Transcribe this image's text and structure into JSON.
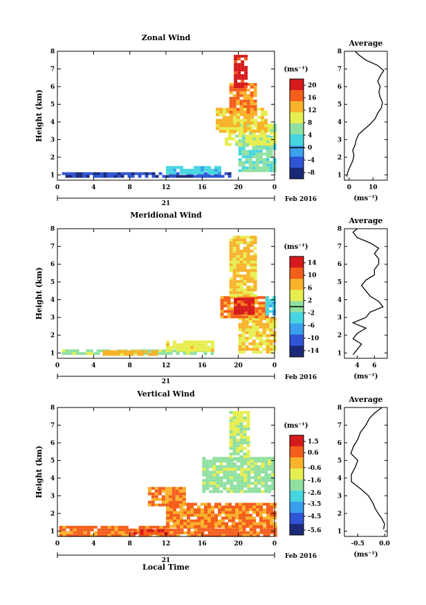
{
  "figure": {
    "day_label": "21",
    "month_year": "Feb 2016",
    "xlabel": "Local Time",
    "ylabel": "Height (km)",
    "profile_title": "Average"
  },
  "chart_data": [
    {
      "type": "heatmap",
      "title": "Zonal Wind",
      "xlabel": "",
      "ylabel": "Height (km)",
      "x_ticks": [
        "0",
        "4",
        "8",
        "12",
        "16",
        "20",
        "0"
      ],
      "y_ticks": [
        "1",
        "2",
        "3",
        "4",
        "5",
        "6",
        "7",
        "8"
      ],
      "xlim": [
        0,
        24
      ],
      "ylim": [
        0.7,
        8
      ],
      "colorbar": {
        "unit": "(ms⁻¹)",
        "ticks": [
          "-8",
          "-4",
          "0",
          "4",
          "8",
          "12",
          "16",
          "20"
        ],
        "range": [
          -10,
          22
        ],
        "marker": 0
      },
      "colors": [
        "#1b2a78",
        "#2f54d6",
        "#3aa0ee",
        "#46d6e0",
        "#8fe0a0",
        "#e6ee50",
        "#f9b22a",
        "#f45d1a",
        "#d6191c"
      ],
      "regions": [
        {
          "x": [
            0.5,
            19
          ],
          "y": [
            0.9,
            1.15
          ],
          "value": -6
        },
        {
          "x": [
            12,
            18
          ],
          "y": [
            1.1,
            1.5
          ],
          "value": 2
        },
        {
          "x": [
            20,
            24
          ],
          "y": [
            1.3,
            3.2
          ],
          "value": 5
        },
        {
          "x": [
            18.5,
            24
          ],
          "y": [
            2.8,
            3.9
          ],
          "value": 9
        },
        {
          "x": [
            17.5,
            23
          ],
          "y": [
            3.5,
            4.8
          ],
          "value": 12
        },
        {
          "x": [
            19,
            22
          ],
          "y": [
            4.5,
            6.2
          ],
          "value": 15
        },
        {
          "x": [
            19.5,
            21
          ],
          "y": [
            6,
            7.8
          ],
          "value": 20
        }
      ]
    },
    {
      "type": "line",
      "title": "Average",
      "xlabel": "(ms⁻¹)",
      "x_ticks": [
        "0",
        "10"
      ],
      "y_ticks": [
        "1",
        "2",
        "3",
        "4",
        "5",
        "6",
        "7",
        "8"
      ],
      "xlim": [
        -2,
        16
      ],
      "ylim": [
        0.7,
        8
      ],
      "points": [
        [
          -1,
          0.9
        ],
        [
          -0.5,
          1.2
        ],
        [
          0.5,
          1.5
        ],
        [
          1.5,
          1.8
        ],
        [
          2,
          2.1
        ],
        [
          1.5,
          2.4
        ],
        [
          2.5,
          2.7
        ],
        [
          3,
          3
        ],
        [
          4,
          3.3
        ],
        [
          6.5,
          3.6
        ],
        [
          9,
          3.9
        ],
        [
          11,
          4.2
        ],
        [
          12,
          4.5
        ],
        [
          13.5,
          4.8
        ],
        [
          14,
          5.1
        ],
        [
          13,
          5.4
        ],
        [
          12.5,
          5.7
        ],
        [
          13,
          6
        ],
        [
          12,
          6.3
        ],
        [
          13,
          6.6
        ],
        [
          14.5,
          6.9
        ],
        [
          12,
          7.2
        ],
        [
          7,
          7.5
        ],
        [
          4,
          7.8
        ],
        [
          2.5,
          8
        ]
      ]
    },
    {
      "type": "heatmap",
      "title": "Meridional Wind",
      "xlabel": "",
      "ylabel": "Height (km)",
      "x_ticks": [
        "0",
        "4",
        "8",
        "12",
        "16",
        "20",
        "0"
      ],
      "y_ticks": [
        "1",
        "2",
        "3",
        "4",
        "5",
        "6",
        "7",
        "8"
      ],
      "xlim": [
        0,
        24
      ],
      "ylim": [
        0.7,
        8
      ],
      "colorbar": {
        "unit": "(ms⁻¹)",
        "ticks": [
          "-14",
          "-10",
          "-6",
          "-2",
          "2",
          "6",
          "10",
          "14"
        ],
        "range": [
          -16,
          16
        ],
        "marker": 0
      },
      "colors": [
        "#1b2a78",
        "#2f54d6",
        "#3aa0ee",
        "#46d6e0",
        "#8fe0a0",
        "#e6ee50",
        "#f9b22a",
        "#f45d1a",
        "#d6191c"
      ],
      "regions": [
        {
          "x": [
            0.5,
            17
          ],
          "y": [
            0.9,
            1.2
          ],
          "value": 1
        },
        {
          "x": [
            5,
            11
          ],
          "y": [
            0.9,
            1.15
          ],
          "value": 7
        },
        {
          "x": [
            12,
            17
          ],
          "y": [
            1.1,
            1.7
          ],
          "value": 4
        },
        {
          "x": [
            20,
            24
          ],
          "y": [
            1.1,
            3
          ],
          "value": 5
        },
        {
          "x": [
            18,
            23
          ],
          "y": [
            3,
            4.2
          ],
          "value": 9
        },
        {
          "x": [
            19.5,
            21.5
          ],
          "y": [
            3.3,
            4.1
          ],
          "value": 14
        },
        {
          "x": [
            23,
            24
          ],
          "y": [
            3.2,
            4.2
          ],
          "value": -4
        },
        {
          "x": [
            19,
            22
          ],
          "y": [
            4.2,
            7.6
          ],
          "value": 6
        }
      ]
    },
    {
      "type": "line",
      "title": "Average",
      "xlabel": "(ms⁻¹)",
      "x_ticks": [
        "4",
        "6"
      ],
      "y_ticks": [
        "1",
        "2",
        "3",
        "4",
        "5",
        "6",
        "7",
        "8"
      ],
      "xlim": [
        2.5,
        7.5
      ],
      "ylim": [
        0.7,
        8
      ],
      "points": [
        [
          3.5,
          0.9
        ],
        [
          4,
          1.2
        ],
        [
          4.5,
          1.5
        ],
        [
          3.5,
          1.8
        ],
        [
          4,
          2.1
        ],
        [
          5,
          2.4
        ],
        [
          3.5,
          2.7
        ],
        [
          5,
          3
        ],
        [
          5.5,
          3.3
        ],
        [
          7,
          3.6
        ],
        [
          6.5,
          3.9
        ],
        [
          5.5,
          4.2
        ],
        [
          5,
          4.5
        ],
        [
          4.5,
          4.8
        ],
        [
          5,
          5.1
        ],
        [
          6,
          5.4
        ],
        [
          6,
          5.7
        ],
        [
          6.5,
          6
        ],
        [
          6.5,
          6.3
        ],
        [
          6,
          6.6
        ],
        [
          6.5,
          6.9
        ],
        [
          5.5,
          7.2
        ],
        [
          4,
          7.5
        ],
        [
          3.5,
          7.8
        ],
        [
          4,
          8
        ]
      ]
    },
    {
      "type": "heatmap",
      "title": "Vertical Wind",
      "xlabel": "Local Time",
      "ylabel": "Height (km)",
      "x_ticks": [
        "0",
        "4",
        "8",
        "12",
        "16",
        "20",
        "0"
      ],
      "y_ticks": [
        "1",
        "2",
        "3",
        "4",
        "5",
        "6",
        "7",
        "8"
      ],
      "xlim": [
        0,
        24
      ],
      "ylim": [
        0.7,
        8
      ],
      "colorbar": {
        "unit": "(ms⁻¹)",
        "ticks": [
          "-5.6",
          "-4.5",
          "-3.5",
          "-2.6",
          "-1.6",
          "-0.6",
          "0.6",
          "1.5"
        ],
        "range": [
          -6,
          2
        ],
        "marker": null
      },
      "colors": [
        "#1b2a78",
        "#2f54d6",
        "#3aa0ee",
        "#46d6e0",
        "#8fe0a0",
        "#e6ee50",
        "#f9b22a",
        "#f45d1a",
        "#d6191c"
      ],
      "regions": [
        {
          "x": [
            0.2,
            24
          ],
          "y": [
            0.8,
            1.3
          ],
          "value": 0.5
        },
        {
          "x": [
            8,
            12
          ],
          "y": [
            0.8,
            1.1
          ],
          "value": 1.0
        },
        {
          "x": [
            12,
            24
          ],
          "y": [
            1.3,
            2.6
          ],
          "value": 0.3
        },
        {
          "x": [
            10,
            14
          ],
          "y": [
            2.5,
            3.5
          ],
          "value": 0.2
        },
        {
          "x": [
            16,
            24
          ],
          "y": [
            3.2,
            5.2
          ],
          "value": -1.8
        },
        {
          "x": [
            19,
            21
          ],
          "y": [
            5,
            7.8
          ],
          "value": -1.5
        }
      ]
    },
    {
      "type": "line",
      "title": "Average",
      "xlabel": "(ms⁻¹)",
      "x_ticks": [
        "-0.5",
        "0.0"
      ],
      "y_ticks": [
        "1",
        "2",
        "3",
        "4",
        "5",
        "6",
        "7",
        "8"
      ],
      "xlim": [
        -0.75,
        0.05
      ],
      "ylim": [
        0.7,
        8
      ],
      "points": [
        [
          -0.02,
          1.1
        ],
        [
          0,
          1.4
        ],
        [
          -0.05,
          1.7
        ],
        [
          -0.12,
          2
        ],
        [
          -0.18,
          2.3
        ],
        [
          -0.22,
          2.6
        ],
        [
          -0.3,
          3
        ],
        [
          -0.45,
          3.4
        ],
        [
          -0.62,
          3.8
        ],
        [
          -0.62,
          4.2
        ],
        [
          -0.55,
          4.6
        ],
        [
          -0.5,
          5
        ],
        [
          -0.63,
          5.4
        ],
        [
          -0.58,
          5.8
        ],
        [
          -0.5,
          6.2
        ],
        [
          -0.45,
          6.6
        ],
        [
          -0.35,
          7
        ],
        [
          -0.28,
          7.4
        ],
        [
          -0.18,
          7.7
        ],
        [
          -0.05,
          8
        ]
      ]
    }
  ]
}
